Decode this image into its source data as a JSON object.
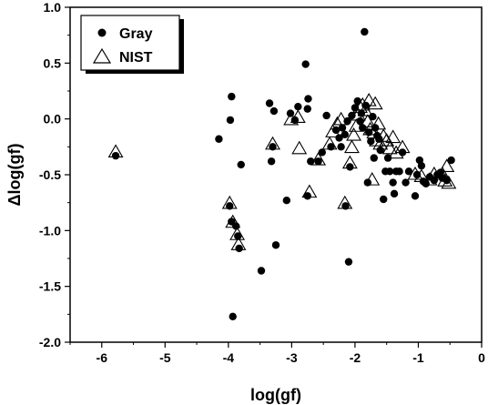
{
  "chart_data": {
    "type": "scatter",
    "title": "",
    "xlabel": "log(gf)",
    "ylabel": "Δlog(gf)",
    "xlim": [
      -6.5,
      0
    ],
    "ylim": [
      -2.0,
      1.0
    ],
    "xticks": [
      -6,
      -5,
      -4,
      -3,
      -2,
      -1,
      0
    ],
    "yticks": [
      -2.0,
      -1.5,
      -1.0,
      -0.5,
      0.0,
      0.5,
      1.0
    ],
    "xtick_labels": [
      "-6",
      "-5",
      "-4",
      "-3",
      "-2",
      "-1",
      "0"
    ],
    "ytick_labels": [
      "-2.0",
      "-1.5",
      "-1.0",
      "-0.5",
      "0.0",
      "0.5",
      "1.0"
    ],
    "legend_position": "top-left",
    "grid": false,
    "series": [
      {
        "name": "Gray",
        "marker": "filled-circle",
        "color": "#000000",
        "points": [
          [
            -5.78,
            -0.33
          ],
          [
            -4.15,
            -0.18
          ],
          [
            -3.95,
            0.2
          ],
          [
            -3.97,
            -0.01
          ],
          [
            -3.8,
            -0.41
          ],
          [
            -3.98,
            -0.78
          ],
          [
            -3.95,
            -0.92
          ],
          [
            -3.88,
            -0.96
          ],
          [
            -3.85,
            -1.05
          ],
          [
            -3.83,
            -1.16
          ],
          [
            -3.93,
            -1.77
          ],
          [
            -3.48,
            -1.36
          ],
          [
            -3.25,
            -1.13
          ],
          [
            -3.35,
            0.14
          ],
          [
            -3.28,
            0.07
          ],
          [
            -3.32,
            -0.38
          ],
          [
            -3.3,
            -0.25
          ],
          [
            -3.08,
            -0.73
          ],
          [
            -3.02,
            0.05
          ],
          [
            -2.95,
            -0.01
          ],
          [
            -2.9,
            0.11
          ],
          [
            -2.78,
            0.49
          ],
          [
            -2.74,
            0.18
          ],
          [
            -2.75,
            0.09
          ],
          [
            -2.7,
            -0.38
          ],
          [
            -2.75,
            -0.69
          ],
          [
            -2.58,
            -0.38
          ],
          [
            -2.52,
            -0.3
          ],
          [
            -2.45,
            0.03
          ],
          [
            -2.38,
            -0.25
          ],
          [
            -2.3,
            -0.1
          ],
          [
            -2.25,
            -0.17
          ],
          [
            -2.2,
            -0.08
          ],
          [
            -2.15,
            -0.78
          ],
          [
            -2.12,
            -0.02
          ],
          [
            -2.1,
            -1.28
          ],
          [
            -2.08,
            -0.43
          ],
          [
            -2.05,
            0.03
          ],
          [
            -2.0,
            0.1
          ],
          [
            -1.96,
            0.16
          ],
          [
            -1.92,
            -0.02
          ],
          [
            -1.9,
            0.05
          ],
          [
            -1.85,
            0.78
          ],
          [
            -1.83,
            0.12
          ],
          [
            -1.8,
            -0.57
          ],
          [
            -1.78,
            -0.12
          ],
          [
            -1.75,
            -0.2
          ],
          [
            -1.72,
            0.02
          ],
          [
            -1.68,
            -0.08
          ],
          [
            -1.65,
            -0.15
          ],
          [
            -1.6,
            -0.28
          ],
          [
            -1.55,
            -0.72
          ],
          [
            -1.52,
            -0.47
          ],
          [
            -1.48,
            -0.35
          ],
          [
            -1.45,
            -0.47
          ],
          [
            -1.4,
            -0.57
          ],
          [
            -1.38,
            -0.67
          ],
          [
            -1.35,
            -0.47
          ],
          [
            -1.3,
            -0.47
          ],
          [
            -1.25,
            -0.3
          ],
          [
            -1.2,
            -0.57
          ],
          [
            -1.15,
            -0.47
          ],
          [
            -1.05,
            -0.69
          ],
          [
            -1.02,
            -0.5
          ],
          [
            -0.98,
            -0.37
          ],
          [
            -0.95,
            -0.42
          ],
          [
            -0.92,
            -0.56
          ],
          [
            -0.88,
            -0.58
          ],
          [
            -0.82,
            -0.52
          ],
          [
            -0.75,
            -0.55
          ],
          [
            -0.7,
            -0.5
          ],
          [
            -0.65,
            -0.48
          ],
          [
            -0.62,
            -0.53
          ],
          [
            -0.55,
            -0.55
          ],
          [
            -0.48,
            -0.37
          ],
          [
            -2.22,
            -0.25
          ],
          [
            -2.16,
            -0.14
          ],
          [
            -1.88,
            -0.08
          ],
          [
            -1.7,
            -0.35
          ],
          [
            -1.62,
            -0.18
          ]
        ]
      },
      {
        "name": "NIST",
        "marker": "open-triangle",
        "color": "#000000",
        "points": [
          [
            -5.78,
            -0.3
          ],
          [
            -3.98,
            -0.76
          ],
          [
            -3.93,
            -0.93
          ],
          [
            -3.86,
            -1.04
          ],
          [
            -3.84,
            -1.13
          ],
          [
            -3.3,
            -0.23
          ],
          [
            -3.01,
            -0.01
          ],
          [
            -2.9,
            0.01
          ],
          [
            -2.88,
            -0.27
          ],
          [
            -2.72,
            -0.66
          ],
          [
            -2.58,
            -0.37
          ],
          [
            -2.4,
            -0.23
          ],
          [
            -2.35,
            -0.12
          ],
          [
            -2.28,
            -0.05
          ],
          [
            -2.22,
            -0.01
          ],
          [
            -2.16,
            -0.76
          ],
          [
            -2.08,
            -0.4
          ],
          [
            -2.05,
            -0.26
          ],
          [
            -2.02,
            -0.15
          ],
          [
            -1.98,
            -0.07
          ],
          [
            -1.95,
            0.03
          ],
          [
            -1.92,
            0.1
          ],
          [
            -1.88,
            0.12
          ],
          [
            -1.84,
            0.07
          ],
          [
            -1.8,
            -0.03
          ],
          [
            -1.78,
            0.16
          ],
          [
            -1.76,
            -0.1
          ],
          [
            -1.73,
            -0.55
          ],
          [
            -1.7,
            -0.13
          ],
          [
            -1.68,
            0.13
          ],
          [
            -1.66,
            -0.2
          ],
          [
            -1.63,
            -0.05
          ],
          [
            -1.6,
            -0.23
          ],
          [
            -1.55,
            -0.16
          ],
          [
            -1.5,
            -0.2
          ],
          [
            -1.45,
            -0.27
          ],
          [
            -1.4,
            -0.17
          ],
          [
            -1.35,
            -0.31
          ],
          [
            -1.25,
            -0.26
          ],
          [
            -1.05,
            -0.5
          ],
          [
            -0.95,
            -0.52
          ],
          [
            -0.82,
            -0.55
          ],
          [
            -0.75,
            -0.5
          ],
          [
            -0.62,
            -0.5
          ],
          [
            -0.58,
            -0.56
          ],
          [
            -0.52,
            -0.58
          ],
          [
            -0.55,
            -0.43
          ]
        ]
      }
    ]
  }
}
